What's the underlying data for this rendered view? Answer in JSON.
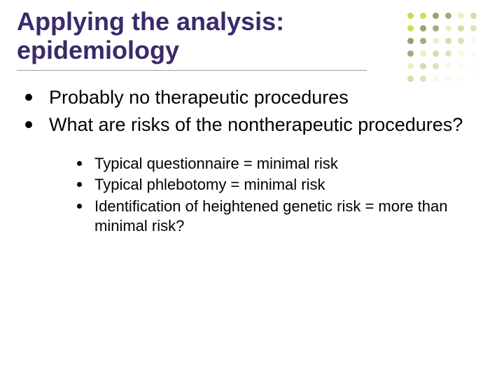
{
  "title_color": "#3a2a6a",
  "title_line1": "Applying the analysis:",
  "title_line2": "epidemiology",
  "bullets": {
    "level1": [
      "Probably no therapeutic procedures",
      "What are risks of the nontherapeutic procedures?"
    ],
    "level2": [
      "Typical questionnaire = minimal risk",
      "Typical phlebotomy = minimal risk",
      "Identification of heightened genetic risk = more than minimal risk?"
    ]
  },
  "typography": {
    "title_fontsize": 36,
    "body_fontsize": 27,
    "sub_fontsize": 22,
    "font_family": "Arial"
  },
  "colors": {
    "background": "#ffffff",
    "text": "#000000",
    "divider": "#9e9e9e",
    "bullet": "#000000"
  },
  "decorative_dots": {
    "grid_size": 6,
    "spacing": 18,
    "dot_size": 9,
    "palette": [
      "#c9d94e",
      "#8a8a54",
      "#dfe8a0",
      "#b8c26a",
      "#eef2c8",
      "#f5f7e0"
    ],
    "opacity_pattern": "fade-top-left-to-bottom-right"
  }
}
